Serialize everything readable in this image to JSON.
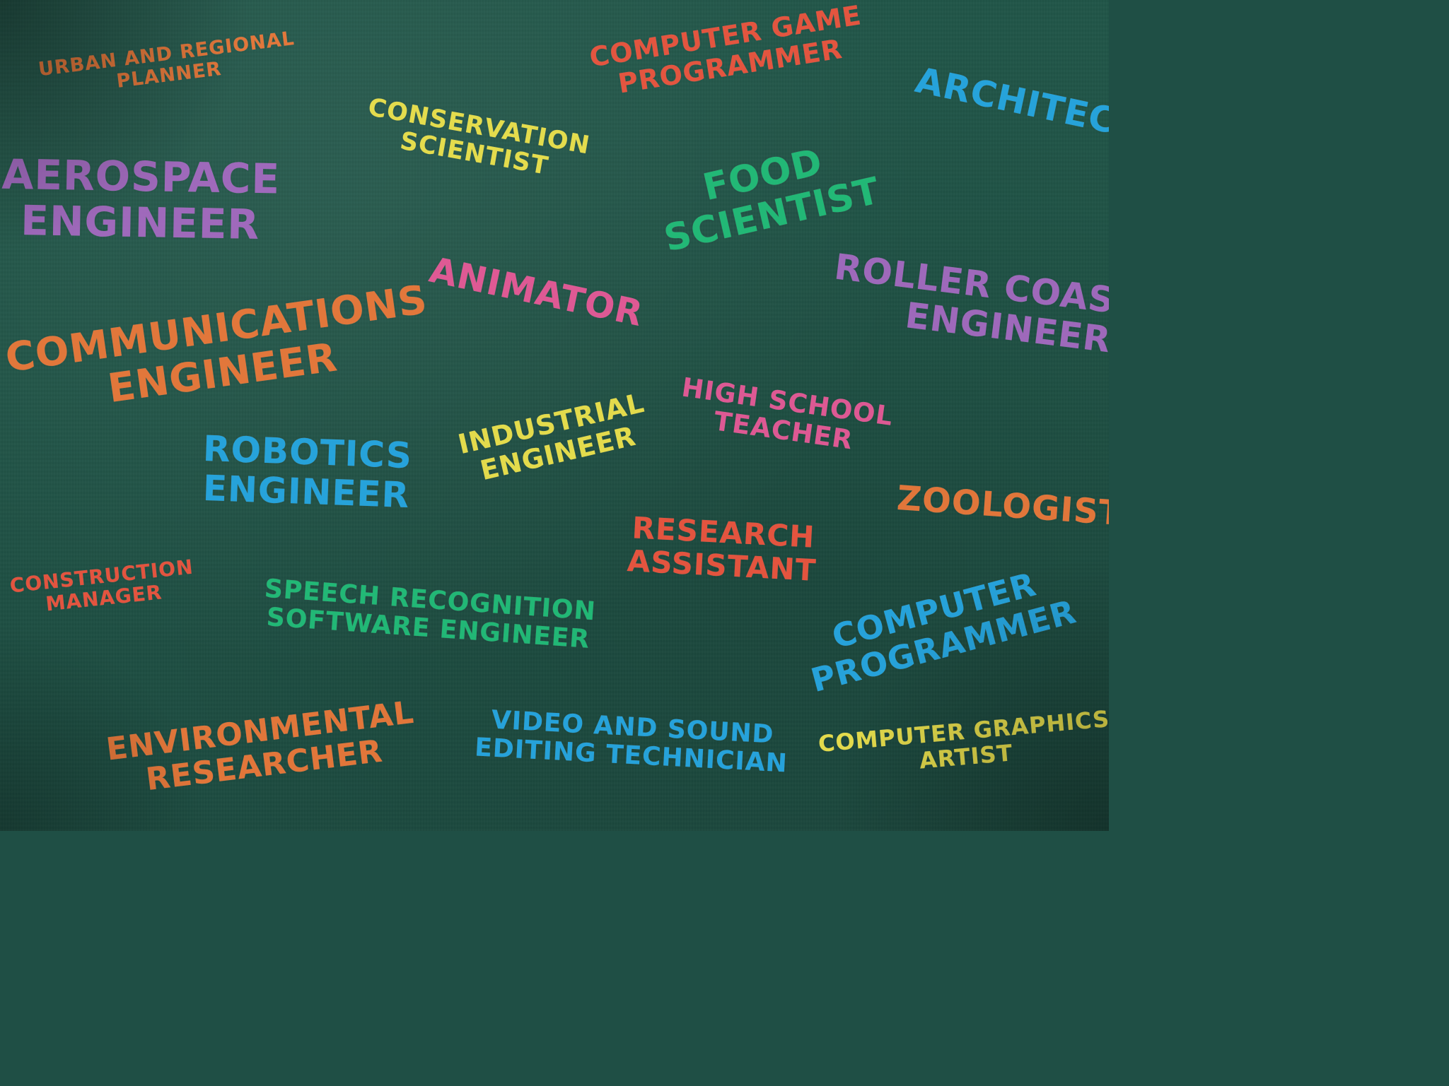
{
  "board": {
    "background_color": "#1f5346",
    "phrases": [
      {
        "id": "urban",
        "lines": [
          "URBAN AND REGIONAL",
          "PLANNER"
        ],
        "color": "#f07a3a"
      },
      {
        "id": "computer-game",
        "lines": [
          "COMPUTER GAME",
          "PROGRAMMER"
        ],
        "color": "#f2553f"
      },
      {
        "id": "architect",
        "lines": [
          "ARCHITECT"
        ],
        "color": "#27a9e6"
      },
      {
        "id": "conservation",
        "lines": [
          "CONSERVATION",
          "SCIENTIST"
        ],
        "color": "#f2e64d"
      },
      {
        "id": "aerospace",
        "lines": [
          "AEROSPACE",
          "ENGINEER"
        ],
        "color": "#a86bc4"
      },
      {
        "id": "food",
        "lines": [
          "FOOD",
          "SCIENTIST"
        ],
        "color": "#22c07a"
      },
      {
        "id": "animator",
        "lines": [
          "ANIMATOR"
        ],
        "color": "#ec5a9a"
      },
      {
        "id": "roller-coaster",
        "lines": [
          "ROLLER COASTER",
          "ENGINEER"
        ],
        "color": "#a86bc4"
      },
      {
        "id": "communications",
        "lines": [
          "COMMUNICATIONS",
          "ENGINEER"
        ],
        "color": "#f07a3a"
      },
      {
        "id": "high-school",
        "lines": [
          "HIGH SCHOOL",
          "TEACHER"
        ],
        "color": "#ec5a9a"
      },
      {
        "id": "industrial",
        "lines": [
          "INDUSTRIAL",
          "ENGINEER"
        ],
        "color": "#f2e64d"
      },
      {
        "id": "robotics",
        "lines": [
          "ROBOTICS",
          "ENGINEER"
        ],
        "color": "#27a9e6"
      },
      {
        "id": "zoologist",
        "lines": [
          "ZOOLOGIST"
        ],
        "color": "#f07a3a"
      },
      {
        "id": "research-assistant",
        "lines": [
          "RESEARCH",
          "ASSISTANT"
        ],
        "color": "#f2553f"
      },
      {
        "id": "construction",
        "lines": [
          "CONSTRUCTION",
          "MANAGER"
        ],
        "color": "#f2553f"
      },
      {
        "id": "speech",
        "lines": [
          "SPEECH RECOGNITION",
          "SOFTWARE ENGINEER"
        ],
        "color": "#22c07a"
      },
      {
        "id": "computer-programmer",
        "lines": [
          "COMPUTER",
          "PROGRAMMER"
        ],
        "color": "#27a9e6"
      },
      {
        "id": "environmental",
        "lines": [
          "ENVIRONMENTAL",
          "RESEARCHER"
        ],
        "color": "#f07a3a"
      },
      {
        "id": "video-sound",
        "lines": [
          "VIDEO AND SOUND",
          "EDITING TECHNICIAN"
        ],
        "color": "#27a9e6"
      },
      {
        "id": "graphics",
        "lines": [
          "COMPUTER GRAPHICS",
          "ARTIST"
        ],
        "color": "#f2e64d"
      }
    ]
  }
}
